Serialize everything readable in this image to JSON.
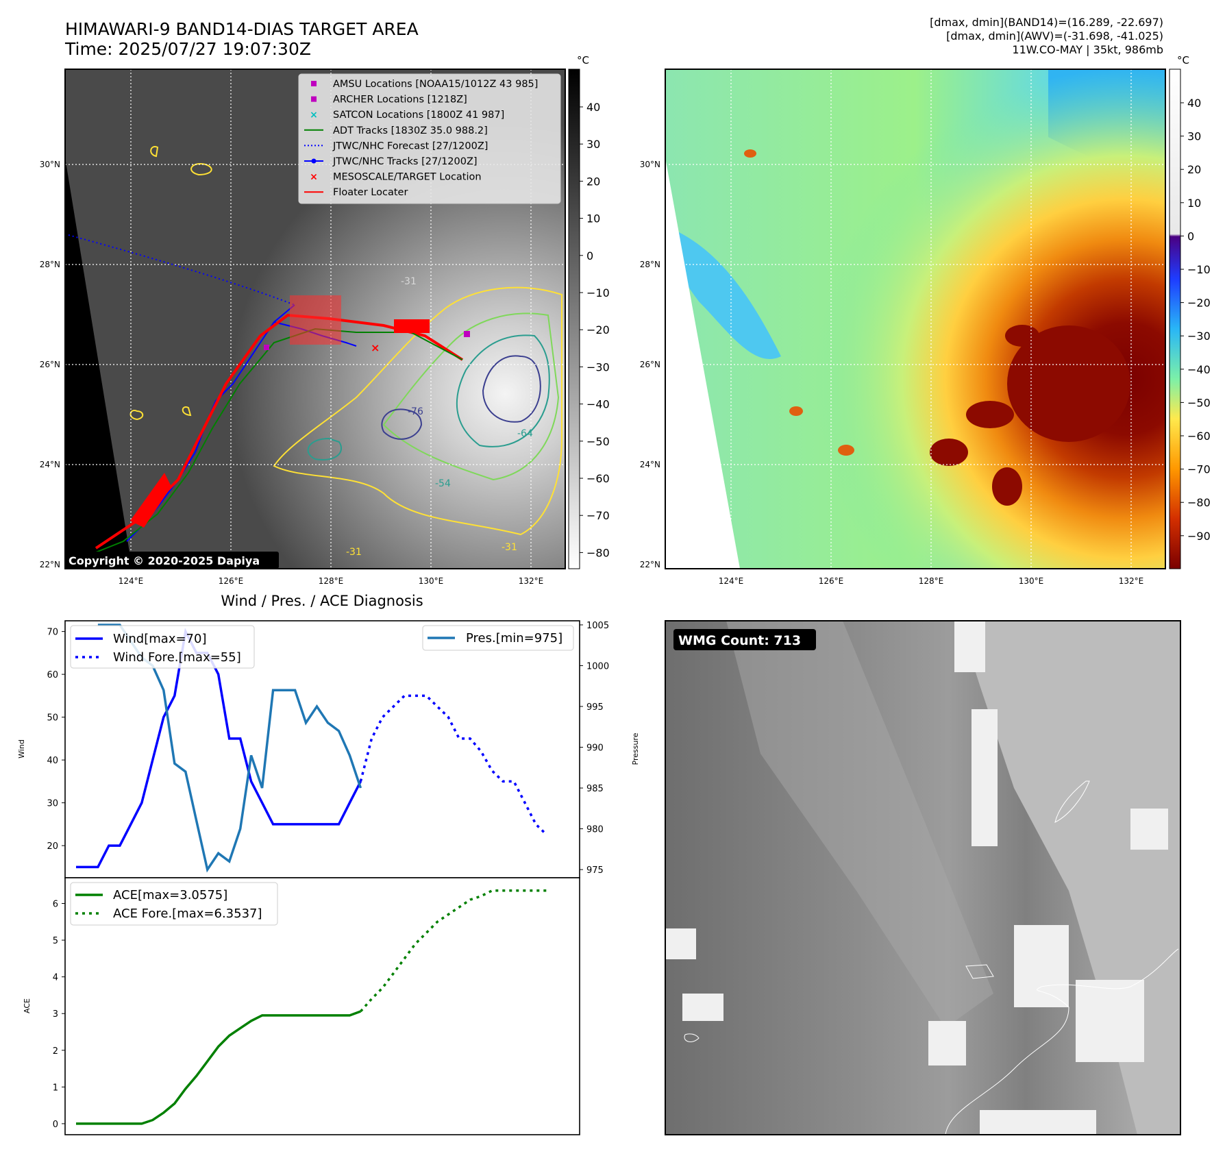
{
  "header": {
    "title_line1": "HIMAWARI-9 BAND14-DIAS TARGET AREA",
    "title_line2": "Time: 2025/07/27 19:07:30Z",
    "info_line1": "[dmax, dmin](BAND14)=(16.289, -22.697)",
    "info_line2": "[dmax, dmin](AWV)=(-31.698, -41.025)",
    "info_line3": "11W.CO-MAY | 35kt, 986mb"
  },
  "map_left": {
    "legend": [
      {
        "label": "AMSU Locations [NOAA15/1012Z 43 985]",
        "marker": "square",
        "color": "#bf00bf"
      },
      {
        "label": "ARCHER Locations [1218Z]",
        "marker": "square",
        "color": "#bf00bf"
      },
      {
        "label": "SATCON Locations [1800Z 41 987]",
        "marker": "x",
        "color": "#00bfbf"
      },
      {
        "label": "ADT Tracks [1830Z 35.0 988.2]",
        "marker": "line",
        "color": "#008000"
      },
      {
        "label": "JTWC/NHC Forecast [27/1200Z]",
        "marker": "dotted",
        "color": "#0000ff"
      },
      {
        "label": "JTWC/NHC Tracks [27/1200Z]",
        "marker": "line-dot",
        "color": "#0000ff"
      },
      {
        "label": "MESOSCALE/TARGET Location",
        "marker": "x",
        "color": "#ff0000"
      },
      {
        "label": "Floater Locater",
        "marker": "line",
        "color": "#ff0000"
      }
    ],
    "colorbar_unit": "°C",
    "colorbar_ticks": [
      "40",
      "30",
      "20",
      "10",
      "0",
      "−10",
      "−20",
      "−30",
      "−40",
      "−50",
      "−60",
      "−70",
      "−80"
    ],
    "copyright": "Copyright © 2020-2025 Dapiya",
    "contour_labels": [
      "-31",
      "-64",
      "-76",
      "-31",
      "-54",
      "-31"
    ]
  },
  "map_right": {
    "colorbar_unit": "°C",
    "colorbar_ticks": [
      "40",
      "30",
      "20",
      "10",
      "0",
      "−10",
      "−20",
      "−30",
      "−40",
      "−50",
      "−60",
      "−70",
      "−80",
      "−90"
    ]
  },
  "map_axes": {
    "lat_labels": [
      "30°N",
      "28°N",
      "26°N",
      "24°N",
      "22°N"
    ],
    "lon_labels": [
      "124°E",
      "126°E",
      "128°E",
      "130°E",
      "132°E"
    ]
  },
  "wmg": {
    "label": "WMG Count: 713"
  },
  "chart_data": [
    {
      "type": "line",
      "title": "Wind / Pres. / ACE Diagnosis",
      "ylabel": "Wind",
      "y2label": "Pressure",
      "ylim": [
        12.5,
        72.5
      ],
      "y2lim": [
        974,
        1005.5
      ],
      "yticks": [
        20,
        30,
        40,
        50,
        60,
        70
      ],
      "y2ticks": [
        975,
        980,
        985,
        990,
        995,
        1000,
        1005
      ],
      "series": [
        {
          "name": "Wind[max=70]",
          "axis": "left",
          "color": "#0000ff",
          "style": "solid",
          "x": [
            0,
            1,
            2,
            3,
            4,
            5,
            6,
            7,
            8,
            9,
            10,
            11,
            12,
            13,
            14,
            15,
            16,
            17,
            18,
            19,
            20,
            21,
            22,
            23,
            24,
            25,
            26,
            27,
            28,
            29,
            30,
            31,
            32,
            33,
            34,
            35,
            36,
            37,
            38,
            39,
            40,
            41,
            42,
            43
          ],
          "values": [
            15,
            15,
            15,
            20,
            20,
            25,
            30,
            40,
            50,
            55,
            70,
            65,
            65,
            60,
            45,
            45,
            35,
            30,
            25,
            25,
            25,
            25,
            25,
            25,
            25,
            30,
            35,
            null,
            null,
            null,
            null,
            null,
            null,
            null,
            null,
            null,
            null,
            null,
            null,
            null,
            null,
            null,
            null,
            null
          ]
        },
        {
          "name": "Wind Fore.[max=55]",
          "axis": "left",
          "color": "#0000ff",
          "style": "dotted",
          "x": [
            26,
            27,
            28,
            29,
            30,
            31,
            32,
            33,
            34,
            35,
            36,
            37,
            38,
            39,
            40,
            41,
            42,
            43
          ],
          "values": [
            35,
            45,
            50,
            52.5,
            55,
            55,
            55,
            52.5,
            50,
            45,
            45,
            42,
            37.5,
            35,
            35,
            30,
            25,
            22.5
          ]
        },
        {
          "name": "Pres.[min=975]",
          "axis": "right",
          "color": "#1f77b4",
          "style": "solid",
          "x": [
            2,
            3,
            4,
            5,
            6,
            7,
            8,
            9,
            10,
            11,
            12,
            13,
            14,
            15,
            16,
            17,
            18,
            19,
            20,
            21,
            22,
            23,
            24,
            25,
            26
          ],
          "values": [
            1005,
            1005,
            1005,
            1003,
            1001,
            1000,
            997,
            988,
            987,
            981,
            975,
            977,
            976,
            980,
            989,
            985,
            997,
            997,
            997,
            993,
            995,
            993,
            992,
            989,
            985
          ]
        }
      ]
    },
    {
      "type": "line",
      "ylabel": "ACE",
      "ylim": [
        -0.3,
        6.7
      ],
      "yticks": [
        0,
        1,
        2,
        3,
        4,
        5,
        6
      ],
      "series": [
        {
          "name": "ACE[max=3.0575]",
          "color": "#008000",
          "style": "solid",
          "x": [
            0,
            6,
            7,
            8,
            9,
            10,
            11,
            12,
            13,
            14,
            15,
            16,
            17,
            18,
            19,
            20,
            21,
            22,
            23,
            24,
            25,
            26
          ],
          "values": [
            0,
            0,
            0.1,
            0.3,
            0.55,
            0.95,
            1.3,
            1.7,
            2.1,
            2.4,
            2.6,
            2.8,
            2.95,
            2.95,
            2.95,
            2.95,
            2.95,
            2.95,
            2.95,
            2.95,
            2.95,
            3.06
          ]
        },
        {
          "name": "ACE Fore.[max=6.3537]",
          "color": "#008000",
          "style": "dotted",
          "x": [
            26,
            27,
            28,
            29,
            30,
            31,
            32,
            33,
            34,
            35,
            36,
            37,
            38,
            39,
            40,
            41,
            42,
            43
          ],
          "values": [
            3.06,
            3.4,
            3.7,
            4.1,
            4.5,
            4.9,
            5.2,
            5.5,
            5.7,
            5.9,
            6.1,
            6.2,
            6.35,
            6.35,
            6.35,
            6.35,
            6.35,
            6.35
          ]
        }
      ]
    }
  ]
}
